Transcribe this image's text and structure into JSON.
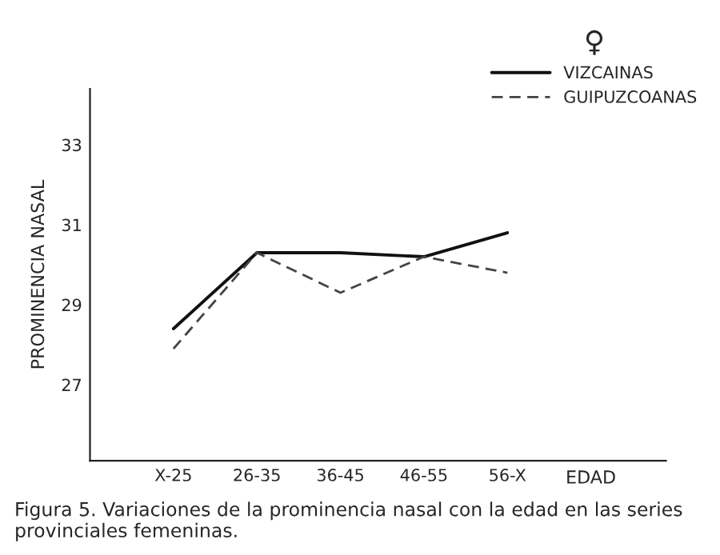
{
  "chart_data": {
    "type": "line",
    "categories": [
      "X-25",
      "26-35",
      "36-45",
      "46-55",
      "56-X"
    ],
    "series": [
      {
        "name": "VIZCAINAS",
        "color": "#111111",
        "values": [
          28.4,
          30.3,
          30.3,
          30.2,
          30.8
        ],
        "line_style": "solid"
      },
      {
        "name": "GUIPUZCOANAS",
        "color": "#444444",
        "values": [
          27.9,
          30.3,
          29.3,
          30.2,
          29.8
        ],
        "line_style": "dashed"
      }
    ],
    "xlabel": "EDAD",
    "ylabel": "PROMINENCIA NASAL",
    "legend_title": "♀",
    "ylim": [
      25.1,
      34.4
    ],
    "yticks": [
      27,
      29,
      31,
      33
    ],
    "legend": "top right",
    "grid": false,
    "marker": "none",
    "annotations": [
      "Figura 5. Variaciones de la prominencia nasal con la edad en las series provinciales femeninas."
    ]
  }
}
